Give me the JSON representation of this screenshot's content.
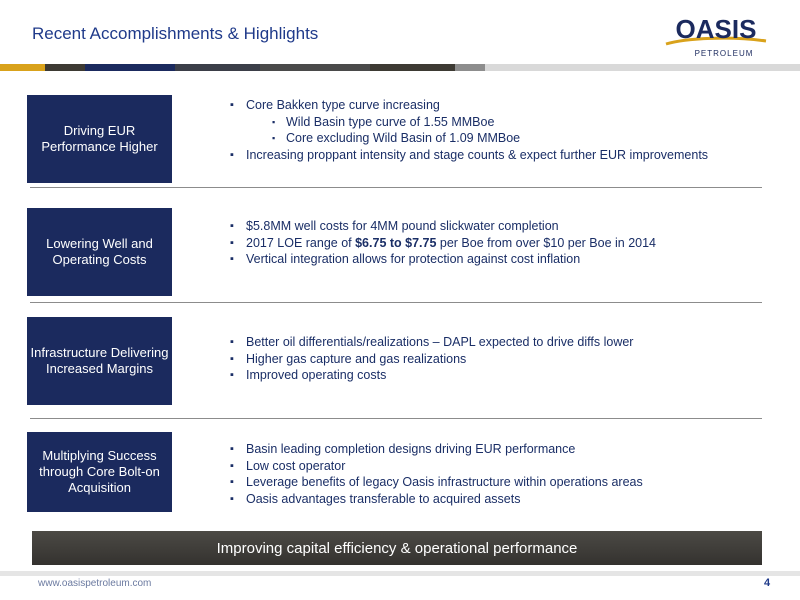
{
  "header": {
    "title": "Recent Accomplishments & Highlights",
    "logo_text": "OASIS",
    "logo_subtext": "PETROLEUM"
  },
  "sections": [
    {
      "label": "Driving EUR Performance Higher",
      "bullets": [
        {
          "level": 1,
          "text": "Core Bakken type curve increasing"
        },
        {
          "level": 2,
          "text": "Wild Basin type curve of 1.55 MMBoe"
        },
        {
          "level": 2,
          "text": "Core excluding Wild Basin of 1.09 MMBoe"
        },
        {
          "level": 1,
          "text": "Increasing proppant intensity and stage counts & expect further EUR improvements"
        }
      ]
    },
    {
      "label": "Lowering Well and Operating Costs",
      "bullets": [
        {
          "level": 1,
          "text": "$5.8MM well costs for 4MM pound slickwater completion"
        },
        {
          "level": 1,
          "pre": "2017 LOE range of ",
          "bold": "$6.75 to $7.75",
          "post": " per Boe from over $10 per Boe in 2014"
        },
        {
          "level": 1,
          "text": "Vertical integration allows for protection against cost inflation"
        }
      ]
    },
    {
      "label": "Infrastructure Delivering Increased Margins",
      "bullets": [
        {
          "level": 1,
          "text": "Better oil differentials/realizations – DAPL expected to drive diffs lower"
        },
        {
          "level": 1,
          "text": "Higher gas capture and gas realizations"
        },
        {
          "level": 1,
          "text": "Improved operating costs"
        }
      ]
    },
    {
      "label": "Multiplying Success through Core Bolt-on Acquisition",
      "bullets": [
        {
          "level": 1,
          "text": "Basin leading completion designs driving EUR performance"
        },
        {
          "level": 1,
          "text": "Low cost operator"
        },
        {
          "level": 1,
          "text": "Leverage benefits of legacy Oasis infrastructure within operations areas"
        },
        {
          "level": 1,
          "text": "Oasis advantages transferable to acquired assets"
        }
      ]
    }
  ],
  "banner": "Improving capital efficiency & operational performance",
  "footer": {
    "url": "www.oasispetroleum.com",
    "page": "4"
  },
  "colors": {
    "navy": "#1b2a5e",
    "title_blue": "#1f3a8a",
    "logo_gold": "#d9a21b",
    "banner_dark": "#3f3d39"
  },
  "top_bar_colors": [
    "#d9a21b",
    "#3d3a33",
    "#1b2a5e",
    "#3b3e48",
    "#4a4a4a",
    "#3d3a33",
    "#8d8d8d",
    "#d9d9d9"
  ]
}
